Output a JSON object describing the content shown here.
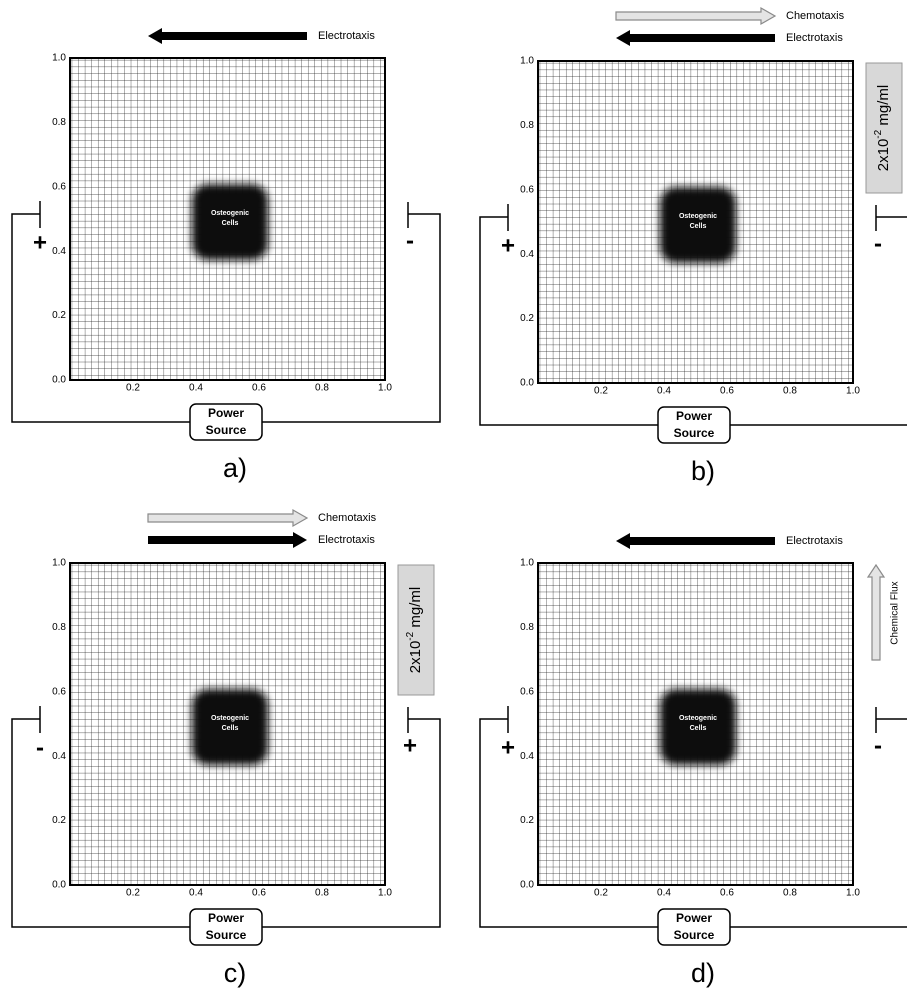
{
  "panels": [
    {
      "label": "a)",
      "arrows": [
        {
          "text": "Electrotaxis",
          "direction": "left",
          "style": "black"
        }
      ],
      "left_sign": "+",
      "right_sign": "-",
      "cells": [
        "Osteogenic",
        "Cells"
      ],
      "power": [
        "Power",
        "Source"
      ],
      "yticks": [
        "0.0",
        "0.2",
        "0.4",
        "0.6",
        "0.8",
        "1.0"
      ],
      "xticks": [
        "0.2",
        "0.4",
        "0.6",
        "0.8",
        "1.0"
      ]
    },
    {
      "label": "b)",
      "arrows": [
        {
          "text": "Chemotaxis",
          "direction": "right",
          "style": "gray"
        },
        {
          "text": "Electrotaxis",
          "direction": "left",
          "style": "black"
        }
      ],
      "left_sign": "+",
      "right_sign": "-",
      "cells": [
        "Osteogenic",
        "Cells"
      ],
      "power": [
        "Power",
        "Source"
      ],
      "yticks": [
        "0.0",
        "0.2",
        "0.4",
        "0.6",
        "0.8",
        "1.0"
      ],
      "xticks": [
        "0.2",
        "0.4",
        "0.6",
        "0.8",
        "1.0"
      ],
      "concentration": {
        "base": "2x10",
        "exponent": "-2",
        "unit": " mg/ml"
      }
    },
    {
      "label": "c)",
      "arrows": [
        {
          "text": "Chemotaxis",
          "direction": "right",
          "style": "gray"
        },
        {
          "text": "Electrotaxis",
          "direction": "right",
          "style": "black"
        }
      ],
      "left_sign": "-",
      "right_sign": "+",
      "cells": [
        "Osteogenic",
        "Cells"
      ],
      "power": [
        "Power",
        "Source"
      ],
      "yticks": [
        "0.0",
        "0.2",
        "0.4",
        "0.6",
        "0.8",
        "1.0"
      ],
      "xticks": [
        "0.2",
        "0.4",
        "0.6",
        "0.8",
        "1.0"
      ],
      "concentration": {
        "base": "2x10",
        "exponent": "-2",
        "unit": " mg/ml"
      }
    },
    {
      "label": "d)",
      "arrows": [
        {
          "text": "Electrotaxis",
          "direction": "left",
          "style": "black"
        }
      ],
      "left_sign": "+",
      "right_sign": "-",
      "cells": [
        "Osteogenic",
        "Cells"
      ],
      "power": [
        "Power",
        "Source"
      ],
      "yticks": [
        "0.0",
        "0.2",
        "0.4",
        "0.6",
        "0.8",
        "1.0"
      ],
      "xticks": [
        "0.2",
        "0.4",
        "0.6",
        "0.8",
        "1.0"
      ],
      "flux": "Chemical Flux"
    }
  ]
}
